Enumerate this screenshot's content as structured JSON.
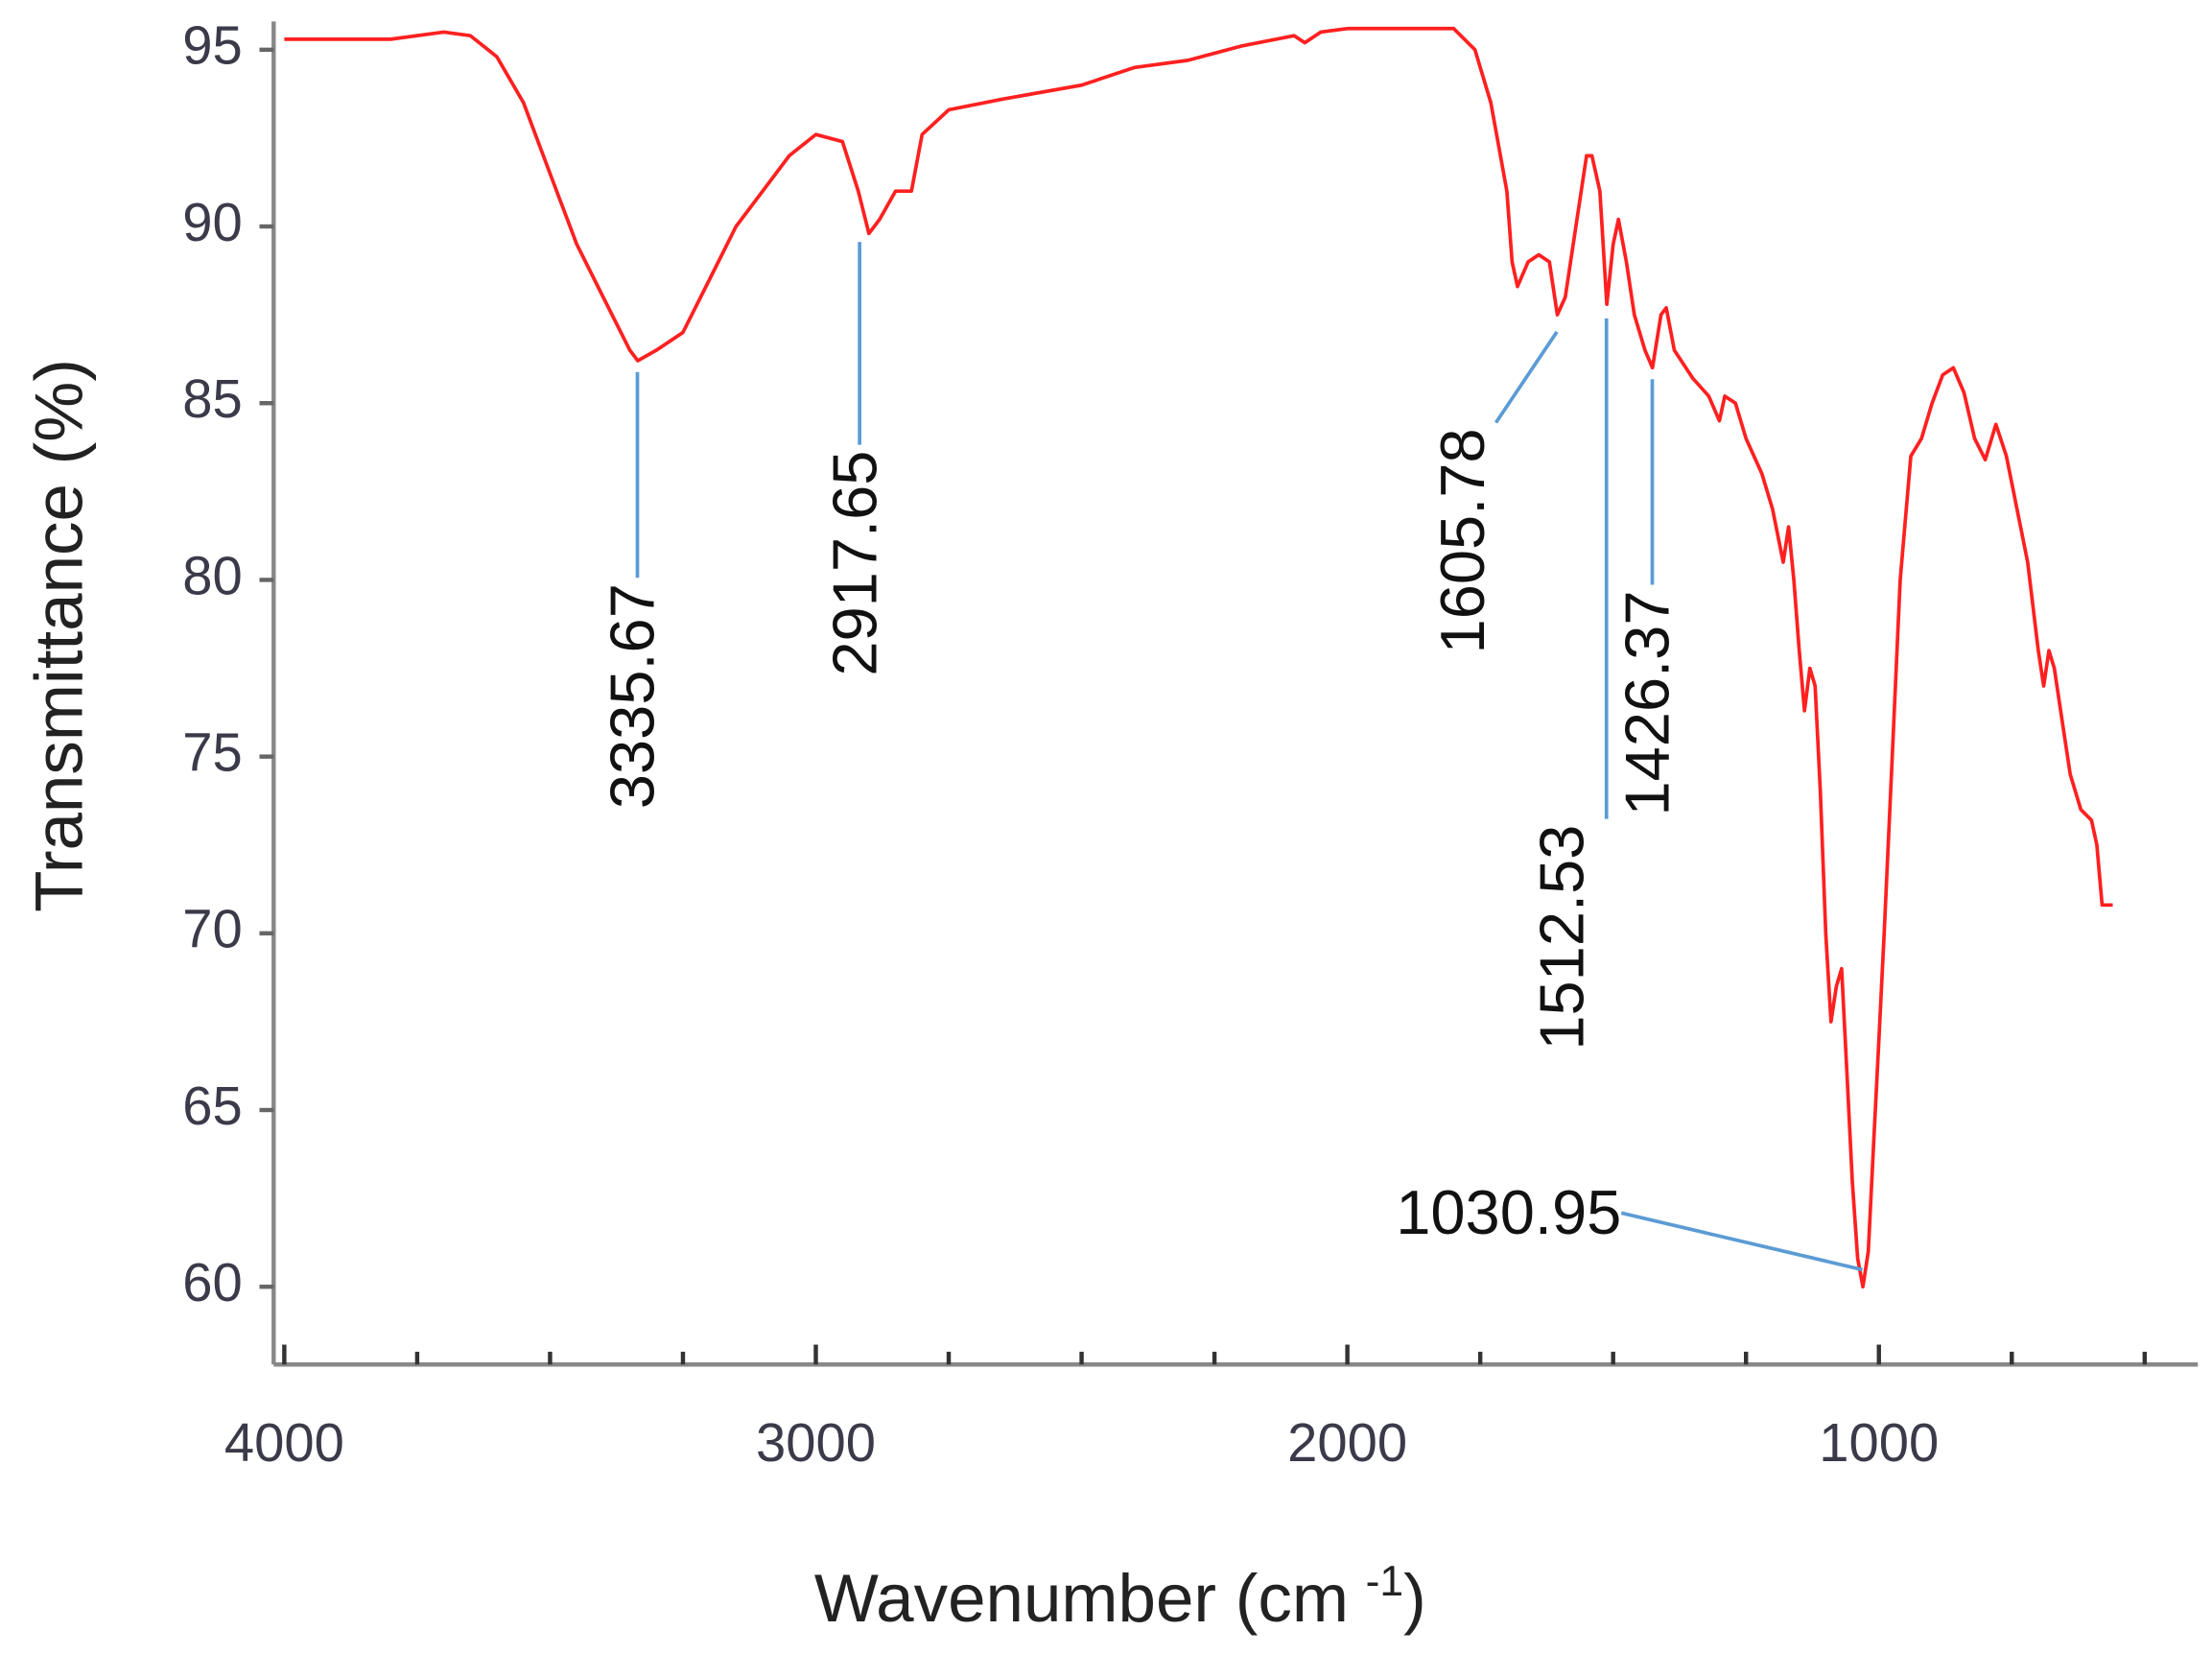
{
  "chart_data": {
    "type": "line",
    "x_label_parts": [
      "Wavenumber (cm",
      "-1",
      ")"
    ],
    "y_label": "Transmittance (%)",
    "xlim": [
      4020,
      400
    ],
    "ylim": [
      57.8,
      95.8
    ],
    "xticks": [
      4000,
      3000,
      2000,
      1000
    ],
    "xminorticks": [
      3750,
      3500,
      3250,
      2750,
      2500,
      2250,
      1750,
      1500,
      1250,
      750,
      500
    ],
    "yticks": [
      60,
      65,
      70,
      75,
      80,
      85,
      90,
      95
    ],
    "series": [
      {
        "color": "#ff2020",
        "x": [
          4000,
          3800,
          3700,
          3650,
          3600,
          3550,
          3500,
          3450,
          3400,
          3350,
          3335,
          3300,
          3250,
          3200,
          3150,
          3100,
          3050,
          3000,
          2950,
          2920,
          2900,
          2880,
          2850,
          2820,
          2800,
          2750,
          2650,
          2500,
          2400,
          2300,
          2200,
          2100,
          2080,
          2050,
          2000,
          1900,
          1800,
          1760,
          1730,
          1700,
          1690,
          1680,
          1660,
          1640,
          1620,
          1605,
          1590,
          1570,
          1550,
          1540,
          1525,
          1512,
          1500,
          1490,
          1475,
          1460,
          1440,
          1426,
          1410,
          1400,
          1385,
          1350,
          1320,
          1300,
          1290,
          1270,
          1250,
          1220,
          1200,
          1180,
          1170,
          1160,
          1150,
          1140,
          1130,
          1120,
          1110,
          1100,
          1090,
          1080,
          1070,
          1060,
          1050,
          1040,
          1030,
          1020,
          1010,
          1000,
          990,
          975,
          960,
          940,
          920,
          900,
          880,
          860,
          840,
          820,
          800,
          780,
          760,
          740,
          720,
          700,
          690,
          680,
          670,
          660,
          640,
          620,
          600,
          590,
          580,
          560
        ],
        "values": [
          95.3,
          95.3,
          95.5,
          95.4,
          94.8,
          93.5,
          91.5,
          89.5,
          88,
          86.5,
          86.2,
          86.5,
          87,
          88.5,
          90,
          91,
          92,
          92.6,
          92.4,
          91,
          89.8,
          90.2,
          91,
          91,
          92.6,
          93.3,
          93.6,
          94,
          94.5,
          94.7,
          95.1,
          95.4,
          95.2,
          95.5,
          95.6,
          95.6,
          95.6,
          95,
          93.5,
          91,
          89,
          88.3,
          89,
          89.2,
          89,
          87.5,
          88,
          90,
          92,
          92,
          91,
          87.8,
          89.5,
          90.2,
          89,
          87.5,
          86.5,
          86,
          87.5,
          87.7,
          86.5,
          85.7,
          85.2,
          84.5,
          85.2,
          85,
          84,
          83,
          82,
          80.5,
          81.5,
          80,
          78,
          76.3,
          77.5,
          77,
          74,
          70,
          67.5,
          68.5,
          69,
          66,
          63,
          60.8,
          60,
          61,
          64,
          67,
          70,
          75,
          80,
          83.5,
          84,
          85,
          85.8,
          86,
          85.3,
          84,
          83.4,
          84.4,
          83.5,
          82,
          80.5,
          78,
          77,
          78,
          77.5,
          76.5,
          74.5,
          73.5,
          73.2,
          72.5,
          70.8,
          70.8
        ]
      }
    ],
    "annotation_color": "#5b9bd5",
    "annotations": [
      {
        "text": "3335.67",
        "x": 3335.67,
        "y": 86.2
      },
      {
        "text": "2917.65",
        "x": 2917.65,
        "y": 89.8
      },
      {
        "text": "1605.78",
        "x": 1605.78,
        "y": 87.5
      },
      {
        "text": "1512.53",
        "x": 1512.53,
        "y": 87.8
      },
      {
        "text": "1426.37",
        "x": 1426.37,
        "y": 86
      },
      {
        "text": "1030.95",
        "x": 1030.95,
        "y": 60
      }
    ]
  }
}
